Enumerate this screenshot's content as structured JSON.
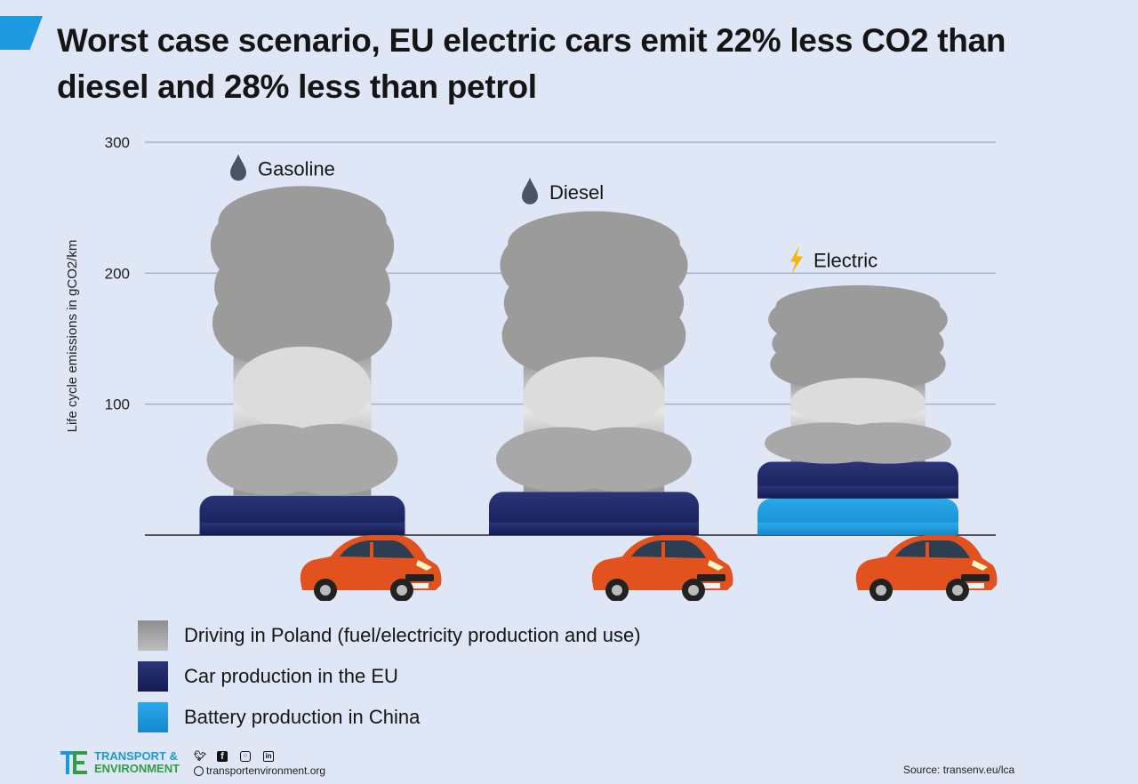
{
  "header": {
    "title": "Worst case scenario, EU electric cars emit 22% less CO2 than diesel and 28% less than petrol"
  },
  "chart_data": {
    "type": "bar",
    "stacked": true,
    "ylabel": "Life cycle emissions in gCO2/km",
    "ylim": [
      0,
      300
    ],
    "yticks": [
      100,
      200,
      300
    ],
    "grid": true,
    "categories": [
      "Gasoline",
      "Diesel",
      "Electric"
    ],
    "series": [
      {
        "name": "Battery production in China",
        "values": [
          0,
          0,
          28
        ],
        "color": "#1e9be0"
      },
      {
        "name": "Car production in the EU",
        "values": [
          30,
          33,
          28
        ],
        "color": "#1b2466"
      },
      {
        "name": "Driving in Poland (fuel/electricity production and use)",
        "values": [
          227,
          206,
          131
        ],
        "color": "#9a9a9a"
      }
    ],
    "category_icons": [
      "fuel-drop-icon",
      "fuel-drop-icon",
      "lightning-icon"
    ],
    "legend_position": "bottom-left"
  },
  "legend": {
    "items": [
      {
        "label": "Driving in Poland (fuel/electricity production and use)"
      },
      {
        "label": "Car production in the EU"
      },
      {
        "label": "Battery production in China"
      }
    ]
  },
  "footer": {
    "brand_line1": "TRANSPORT &",
    "brand_line2": "ENVIRONMENT",
    "website": "transportenvironment.org",
    "source": "Source: transenv.eu/lca",
    "social_icons": [
      "twitter-icon",
      "facebook-icon",
      "instagram-icon",
      "linkedin-icon"
    ]
  },
  "colors": {
    "background": "#dfe6f5",
    "accent": "#1e9be0",
    "car": "#e2521f",
    "lightning": "#f5b50a"
  }
}
